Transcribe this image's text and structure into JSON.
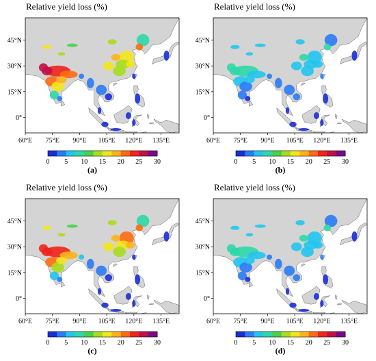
{
  "legend_title": "Relative yield loss (%)",
  "lon_ticks": [
    "60°E",
    "75°E",
    "90°E",
    "105°E",
    "120°E",
    "135°E"
  ],
  "lat_ticks": [
    "45°N",
    "30°N",
    "15°N",
    "0°"
  ],
  "colorbar": {
    "min": 0,
    "max": 30,
    "ticks": [
      "0",
      "5",
      "10",
      "15",
      "20",
      "25",
      "30"
    ],
    "colors": [
      "#1b2fd6",
      "#2a7bf5",
      "#22c5f0",
      "#2fd8a8",
      "#48d14a",
      "#a8dd1e",
      "#f3e61a",
      "#ffb31a",
      "#ff6b12",
      "#f0241c",
      "#c01048",
      "#7a0a8a"
    ]
  },
  "map_colors": {
    "land": "#d4d4d4",
    "ocean": "#ffffff",
    "coast": "#666666"
  },
  "panels": [
    {
      "label": "(a)",
      "intensity": "high"
    },
    {
      "label": "(b)",
      "intensity": "low"
    },
    {
      "label": "(c)",
      "intensity": "medium-high"
    },
    {
      "label": "(d)",
      "intensity": "low"
    }
  ]
}
